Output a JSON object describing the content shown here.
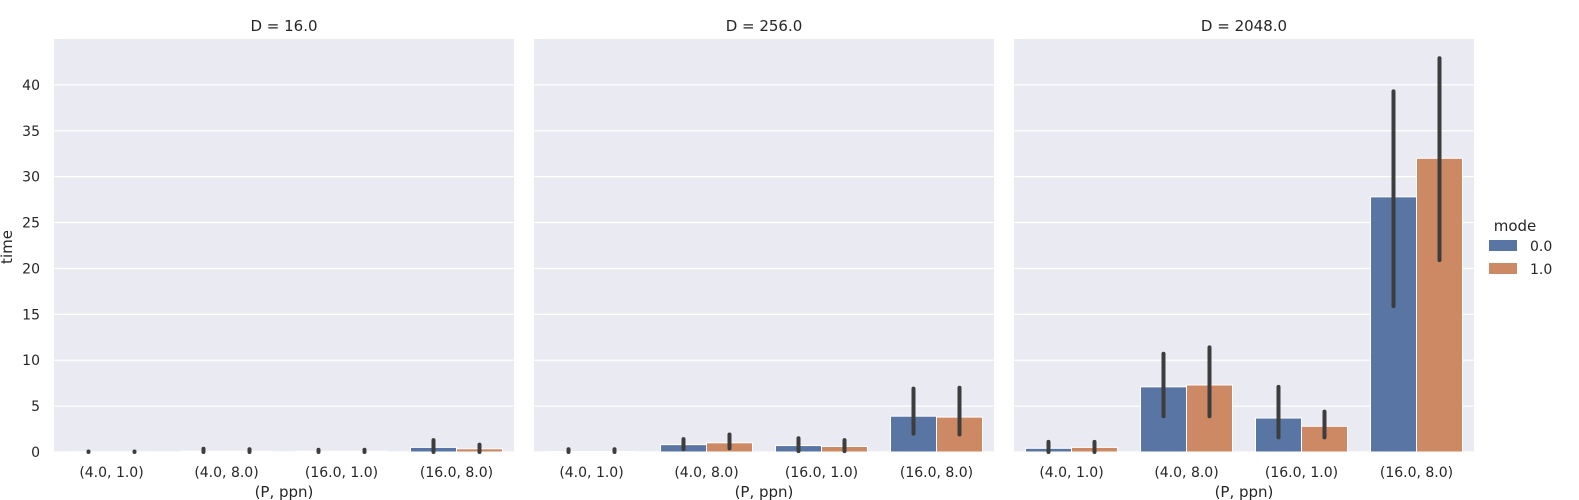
{
  "chart_data": {
    "type": "bar",
    "ylabel": "time",
    "xlabel": "(P, ppn)",
    "categories": [
      "(4.0, 1.0)",
      "(4.0, 8.0)",
      "(16.0, 1.0)",
      "(16.0, 8.0)"
    ],
    "yticks": [
      0,
      5,
      10,
      15,
      20,
      25,
      30,
      35,
      40
    ],
    "ylim": [
      0,
      45
    ],
    "grid": true,
    "legend": {
      "title": "mode",
      "placement": "right",
      "entries": [
        {
          "label": "0.0",
          "color": "#5875a4"
        },
        {
          "label": "1.0",
          "color": "#cc8963"
        }
      ]
    },
    "panels": [
      {
        "title": "D = 16.0",
        "series": [
          {
            "name": "0.0",
            "values": [
              0.02,
              0.08,
              0.08,
              0.5
            ],
            "err_low": [
              0.0,
              0.0,
              0.0,
              0.0
            ],
            "err_high": [
              0.05,
              0.35,
              0.25,
              1.3
            ]
          },
          {
            "name": "1.0",
            "values": [
              0.02,
              0.08,
              0.08,
              0.35
            ],
            "err_low": [
              0.0,
              0.0,
              0.0,
              0.0
            ],
            "err_high": [
              0.05,
              0.3,
              0.25,
              0.8
            ]
          }
        ]
      },
      {
        "title": "D = 256.0",
        "series": [
          {
            "name": "0.0",
            "values": [
              0.05,
              0.8,
              0.7,
              3.9
            ],
            "err_low": [
              0.0,
              0.3,
              0.1,
              2.0
            ],
            "err_high": [
              0.3,
              1.4,
              1.5,
              6.9
            ]
          },
          {
            "name": "1.0",
            "values": [
              0.05,
              1.0,
              0.6,
              3.8
            ],
            "err_low": [
              0.0,
              0.4,
              0.1,
              1.9
            ],
            "err_high": [
              0.3,
              1.9,
              1.3,
              7.0
            ]
          }
        ]
      },
      {
        "title": "D = 2048.0",
        "series": [
          {
            "name": "0.0",
            "values": [
              0.4,
              7.1,
              3.7,
              27.8
            ],
            "err_low": [
              0.0,
              3.9,
              1.6,
              15.9
            ],
            "err_high": [
              1.1,
              10.7,
              7.1,
              39.3
            ]
          },
          {
            "name": "1.0",
            "values": [
              0.5,
              7.3,
              2.8,
              32.0
            ],
            "err_low": [
              0.0,
              3.9,
              1.6,
              20.9
            ],
            "err_high": [
              1.1,
              11.4,
              4.4,
              42.9
            ]
          }
        ]
      }
    ]
  }
}
